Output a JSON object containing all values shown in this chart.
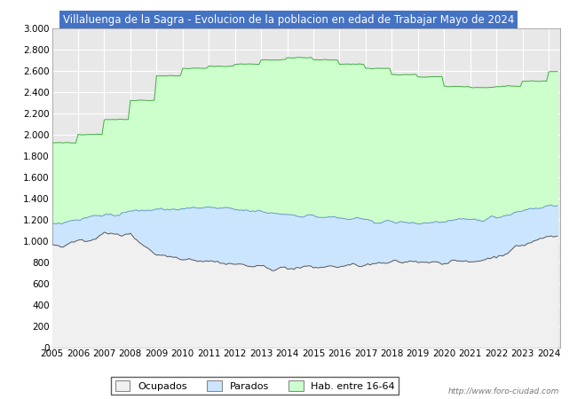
{
  "title": "Villaluenga de la Sagra - Evolucion de la poblacion en edad de Trabajar Mayo de 2024",
  "title_bg": "#4472c4",
  "title_color": "#ffffff",
  "ylim": [
    0,
    3000
  ],
  "ytick_step": 200,
  "years": [
    2005,
    2006,
    2007,
    2008,
    2009,
    2010,
    2011,
    2012,
    2013,
    2014,
    2015,
    2016,
    2017,
    2018,
    2019,
    2020,
    2021,
    2022,
    2023,
    2024
  ],
  "hab_16_64": [
    1920,
    2000,
    2140,
    2320,
    2550,
    2620,
    2640,
    2660,
    2700,
    2720,
    2700,
    2660,
    2620,
    2560,
    2540,
    2450,
    2440,
    2450,
    2500,
    2590
  ],
  "parados_top": [
    1150,
    1200,
    1240,
    1280,
    1290,
    1300,
    1310,
    1290,
    1270,
    1250,
    1230,
    1210,
    1190,
    1175,
    1165,
    1180,
    1190,
    1220,
    1290,
    1330
  ],
  "ocupados": [
    950,
    980,
    1060,
    1060,
    870,
    840,
    810,
    780,
    750,
    740,
    750,
    760,
    770,
    790,
    810,
    800,
    800,
    850,
    960,
    1040
  ],
  "color_hab": "#ccffcc",
  "color_parados": "#cce5ff",
  "color_ocupados": "#f0f0f0",
  "color_line_hab": "#44aa44",
  "color_line_parados": "#6699cc",
  "color_line_ocupados": "#555555",
  "plot_bg": "#e8e8e8",
  "legend_labels": [
    "Ocupados",
    "Parados",
    "Hab. entre 16-64"
  ],
  "watermark": "http://www.foro-ciudad.com",
  "grid_color": "#ffffff"
}
